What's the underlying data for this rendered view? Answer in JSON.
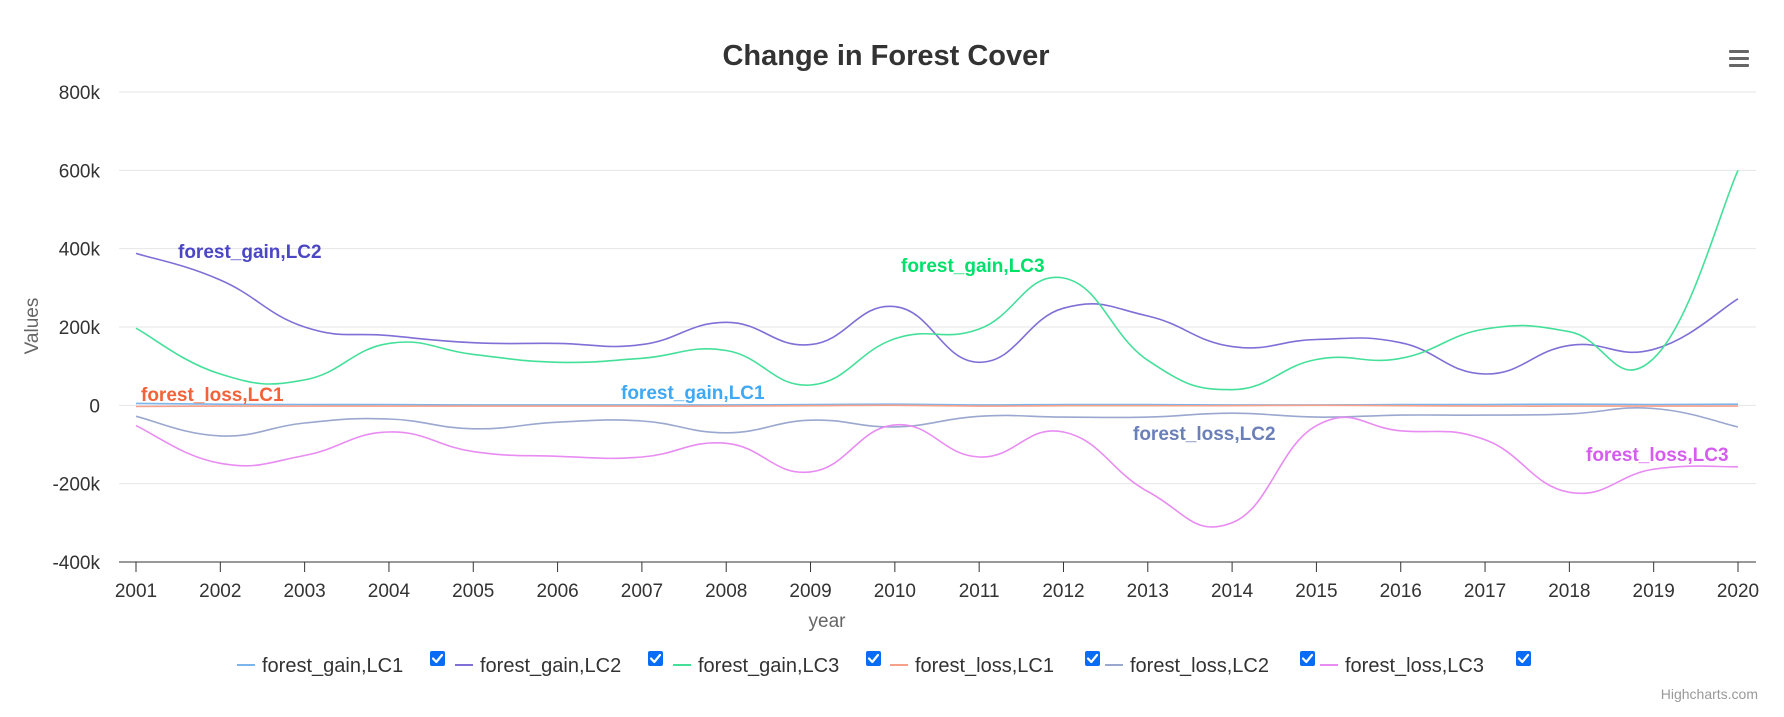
{
  "chart_data": {
    "type": "line",
    "title": "Change in Forest Cover",
    "xlabel": "year",
    "ylabel": "Values",
    "ylim": [
      -400000,
      800000
    ],
    "yticks": [
      -400000,
      -200000,
      0,
      200000,
      400000,
      600000,
      800000
    ],
    "ytick_labels": [
      "-400k",
      "-200k",
      "0",
      "200k",
      "400k",
      "600k",
      "800k"
    ],
    "x": [
      2001,
      2002,
      2003,
      2004,
      2005,
      2006,
      2007,
      2008,
      2009,
      2010,
      2011,
      2012,
      2013,
      2014,
      2015,
      2016,
      2017,
      2018,
      2019,
      2020
    ],
    "grid": true,
    "legend_position": "bottom",
    "series": [
      {
        "name": "forest_gain,LC1",
        "color": "#7cb5ec",
        "values": [
          5000,
          3000,
          2000,
          2000,
          1000,
          1000,
          1000,
          1000,
          2000,
          3000,
          1000,
          2000,
          2000,
          1000,
          1000,
          2000,
          2000,
          3000,
          2000,
          3000
        ]
      },
      {
        "name": "forest_gain,LC2",
        "color": "#7f6fd6",
        "values": [
          388000,
          320000,
          200000,
          178000,
          160000,
          158000,
          155000,
          212000,
          155000,
          252000,
          110000,
          248000,
          228000,
          150000,
          168000,
          160000,
          80000,
          153000,
          143000,
          272000
        ]
      },
      {
        "name": "forest_gain,LC3",
        "color": "#44e09a",
        "values": [
          197000,
          80000,
          65000,
          158000,
          130000,
          110000,
          120000,
          140000,
          52000,
          170000,
          195000,
          325000,
          115000,
          40000,
          117000,
          120000,
          195000,
          188000,
          120000,
          600000
        ]
      },
      {
        "name": "forest_loss,LC1",
        "color": "#f7a08a",
        "values": [
          -3000,
          -2000,
          -2000,
          -2000,
          -2000,
          -2000,
          -2000,
          -2000,
          -1000,
          0,
          -2000,
          -1000,
          -1000,
          -1000,
          0,
          -1000,
          -2000,
          -2000,
          -2000,
          -2000
        ]
      },
      {
        "name": "forest_loss,LC2",
        "color": "#9aa7cf",
        "values": [
          -28000,
          -78000,
          -45000,
          -35000,
          -60000,
          -43000,
          -40000,
          -70000,
          -38000,
          -55000,
          -28000,
          -30000,
          -30000,
          -20000,
          -30000,
          -25000,
          -25000,
          -22000,
          -8000,
          -55000
        ]
      },
      {
        "name": "forest_loss,LC3",
        "color": "#e88cf2",
        "values": [
          -52000,
          -148000,
          -128000,
          -68000,
          -118000,
          -130000,
          -132000,
          -97000,
          -170000,
          -50000,
          -132000,
          -68000,
          -220000,
          -300000,
          -52000,
          -65000,
          -88000,
          -222000,
          -163000,
          -157000
        ]
      }
    ],
    "labels": [
      {
        "text": "forest_gain,LC2",
        "color": "#4b47c4"
      },
      {
        "text": "forest_gain,LC3",
        "color": "#00e06a"
      },
      {
        "text": "forest_loss,LC1",
        "color": "#f4623a"
      },
      {
        "text": "forest_gain,LC1",
        "color": "#3fa9f5"
      },
      {
        "text": "forest_loss,LC2",
        "color": "#6b7fb9"
      },
      {
        "text": "forest_loss,LC3",
        "color": "#d65cf0"
      }
    ]
  },
  "menu_icon": "hamburger-menu-icon",
  "credits": "Highcharts.com"
}
